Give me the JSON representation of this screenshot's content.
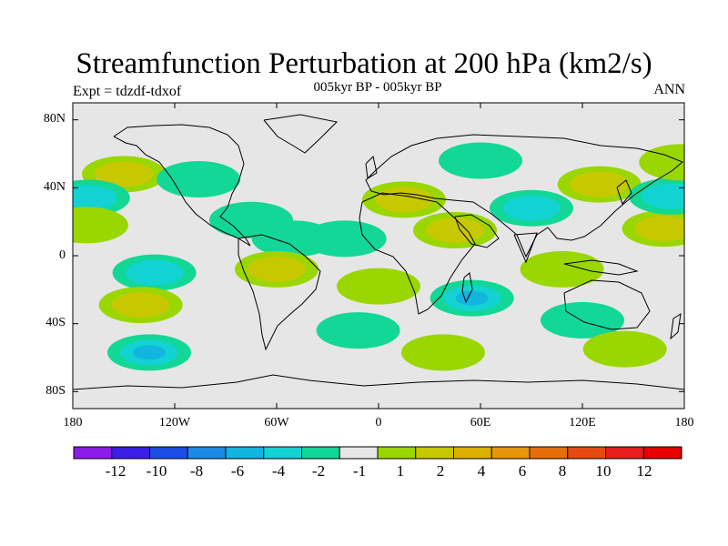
{
  "figure": {
    "title": "Streamfunction Perturbation at 200 hPa (km2/s)",
    "subtitle": "005kyr BP - 005kyr BP",
    "experiment_label": "Expt = tdzdf-tdxof",
    "season": "ANN"
  },
  "map": {
    "projection": "cylindrical equidistant",
    "background_color": "#e6e6e6",
    "coastline_color": "#000000",
    "lat_range": [
      -90,
      90
    ],
    "lon_range": [
      -180,
      180
    ],
    "lat_ticks": [
      "80N",
      "40N",
      "0",
      "40S",
      "80S"
    ],
    "lon_ticks": [
      "180",
      "120W",
      "60W",
      "0",
      "60E",
      "120E",
      "180"
    ]
  },
  "colorbar": {
    "colors": [
      "#8a1ce6",
      "#3c1ee6",
      "#1c4ee6",
      "#1c8ae6",
      "#12b4e0",
      "#12d2d2",
      "#12d796",
      "#e6e6e6",
      "#9ad600",
      "#c8c800",
      "#dcb000",
      "#e6960a",
      "#e66e0a",
      "#e64a14",
      "#e61e1e",
      "#e60000"
    ],
    "labels": [
      "-12",
      "-10",
      "-8",
      "-6",
      "-4",
      "-2",
      "-1",
      "1",
      "2",
      "4",
      "6",
      "8",
      "10",
      "12"
    ]
  },
  "anomalies": [
    {
      "lon": -150,
      "lat": 48,
      "sign": "positive",
      "level": 2
    },
    {
      "lon": -171,
      "lat": 34,
      "sign": "negative",
      "level": 2
    },
    {
      "lon": -172,
      "lat": 18,
      "sign": "positive",
      "level": 1
    },
    {
      "lon": -106,
      "lat": 45,
      "sign": "negative",
      "level": 1
    },
    {
      "lon": -75,
      "lat": 21,
      "sign": "negative",
      "level": 1
    },
    {
      "lon": -50,
      "lat": 10,
      "sign": "negative",
      "level": 1
    },
    {
      "lon": -60,
      "lat": -8,
      "sign": "positive",
      "level": 2
    },
    {
      "lon": -132,
      "lat": -10,
      "sign": "negative",
      "level": 2
    },
    {
      "lon": -140,
      "lat": -29,
      "sign": "positive",
      "level": 2
    },
    {
      "lon": -135,
      "lat": -57,
      "sign": "negative",
      "level": 3
    },
    {
      "lon": -20,
      "lat": 10,
      "sign": "negative",
      "level": 1
    },
    {
      "lon": 15,
      "lat": 33,
      "sign": "positive",
      "level": 2
    },
    {
      "lon": 45,
      "lat": 15,
      "sign": "positive",
      "level": 2
    },
    {
      "lon": 60,
      "lat": 56,
      "sign": "negative",
      "level": 1
    },
    {
      "lon": 90,
      "lat": 28,
      "sign": "negative",
      "level": 2
    },
    {
      "lon": 130,
      "lat": 42,
      "sign": "positive",
      "level": 2
    },
    {
      "lon": 108,
      "lat": -8,
      "sign": "positive",
      "level": 1
    },
    {
      "lon": 55,
      "lat": -25,
      "sign": "negative",
      "level": 3
    },
    {
      "lon": 0,
      "lat": -18,
      "sign": "positive",
      "level": 1
    },
    {
      "lon": 38,
      "lat": -57,
      "sign": "positive",
      "level": 1
    },
    {
      "lon": -12,
      "lat": -44,
      "sign": "negative",
      "level": 1
    },
    {
      "lon": 120,
      "lat": -38,
      "sign": "negative",
      "level": 1
    },
    {
      "lon": 145,
      "lat": -55,
      "sign": "positive",
      "level": 1
    },
    {
      "lon": 168,
      "lat": 16,
      "sign": "positive",
      "level": 2
    },
    {
      "lon": 172,
      "lat": 35,
      "sign": "negative",
      "level": 2
    },
    {
      "lon": 178,
      "lat": 55,
      "sign": "positive",
      "level": 1
    }
  ]
}
